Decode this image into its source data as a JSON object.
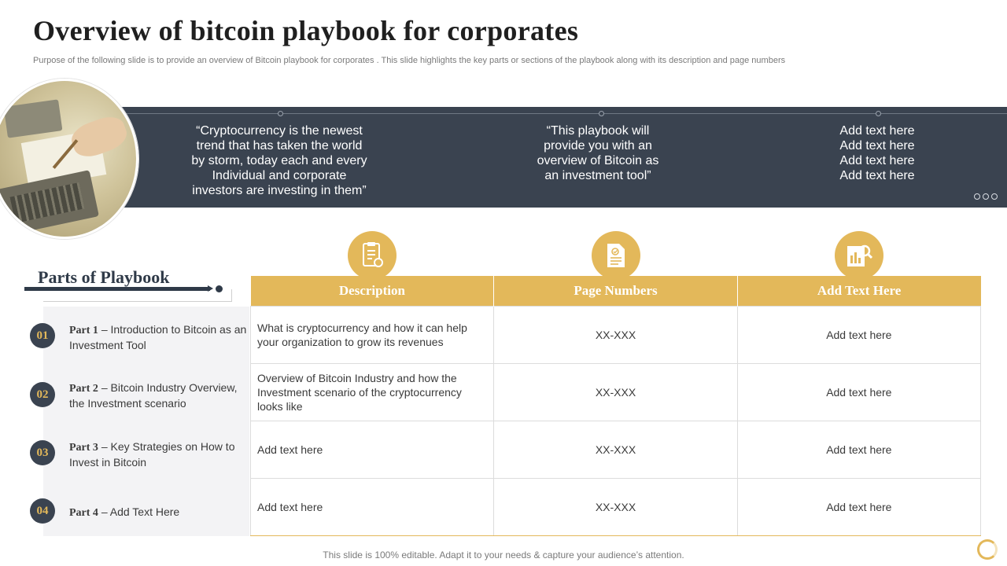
{
  "title": "Overview of bitcoin playbook for corporates",
  "subtitle": "Purpose of the following slide is to provide an overview of Bitcoin playbook for corporates . This slide highlights the key parts or sections of the playbook along with its description and page numbers",
  "banner": {
    "quotes": [
      "“Cryptocurrency  is the newest trend that has taken the world by storm, today each and every Individual and corporate investors are investing in them”",
      "“This playbook will provide you with an overview of Bitcoin as an investment  tool”",
      "Add text here Add text here Add text here Add text here"
    ]
  },
  "header_icons": [
    "document-checklist-icon",
    "document-check-icon",
    "report-search-icon"
  ],
  "parts_title": "Parts of Playbook",
  "parts": [
    {
      "num": "01",
      "label": "Part 1",
      "text": " – Introduction to Bitcoin as an Investment Tool"
    },
    {
      "num": "02",
      "label": "Part 2",
      "text": " – Bitcoin Industry Overview, the Investment scenario"
    },
    {
      "num": "03",
      "label": "Part 3",
      "text": " – Key Strategies on How to Invest in Bitcoin"
    },
    {
      "num": "04",
      "label": "Part 4",
      "text": " – Add Text Here"
    }
  ],
  "table": {
    "headers": [
      "Description",
      "Page Numbers",
      "Add Text Here"
    ],
    "rows": [
      [
        "What is cryptocurrency and how it can help your organization to grow its revenues",
        "XX-XXX",
        "Add text here"
      ],
      [
        "Overview of Bitcoin Industry and how the Investment scenario of the cryptocurrency looks like",
        "XX-XXX",
        "Add text here"
      ],
      [
        "Add text here",
        "XX-XXX",
        "Add text here"
      ],
      [
        "Add text here",
        "XX-XXX",
        "Add text here"
      ]
    ]
  },
  "footer": "This slide is 100% editable. Adapt it to your needs & capture your audience’s attention.",
  "colors": {
    "accent": "#e3b85a",
    "dark": "#3a4350"
  }
}
